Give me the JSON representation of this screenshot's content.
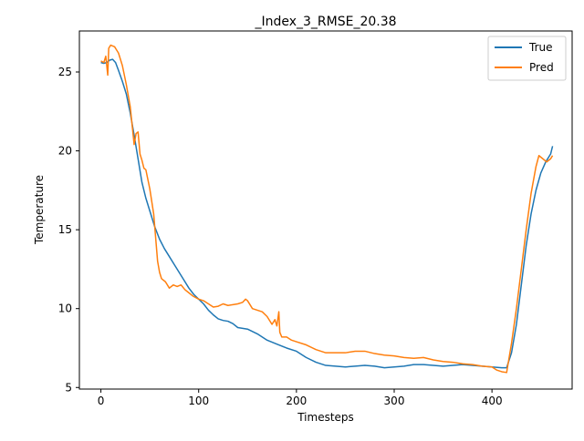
{
  "chart_data": {
    "type": "line",
    "title": "_Index_3_RMSE_20.38",
    "xlabel": "Timesteps",
    "ylabel": "Temperature",
    "xlim": [
      -22,
      482
    ],
    "ylim": [
      4.9,
      27.6
    ],
    "xticks": [
      0,
      100,
      200,
      300,
      400
    ],
    "yticks": [
      5,
      10,
      15,
      20,
      25
    ],
    "grid": false,
    "legend_position": "top-right",
    "series": [
      {
        "name": "True",
        "color": "#1f77b4",
        "points": [
          [
            0,
            25.6
          ],
          [
            3,
            25.55
          ],
          [
            6,
            25.6
          ],
          [
            9,
            25.75
          ],
          [
            12,
            25.8
          ],
          [
            15,
            25.6
          ],
          [
            18,
            25.1
          ],
          [
            22,
            24.4
          ],
          [
            26,
            23.6
          ],
          [
            30,
            22.4
          ],
          [
            34,
            21.0
          ],
          [
            38,
            19.5
          ],
          [
            42,
            18.0
          ],
          [
            46,
            17.0
          ],
          [
            50,
            16.2
          ],
          [
            55,
            15.2
          ],
          [
            60,
            14.4
          ],
          [
            65,
            13.8
          ],
          [
            70,
            13.3
          ],
          [
            75,
            12.8
          ],
          [
            80,
            12.3
          ],
          [
            85,
            11.8
          ],
          [
            90,
            11.3
          ],
          [
            95,
            10.9
          ],
          [
            100,
            10.6
          ],
          [
            105,
            10.3
          ],
          [
            110,
            9.9
          ],
          [
            115,
            9.6
          ],
          [
            120,
            9.35
          ],
          [
            125,
            9.25
          ],
          [
            130,
            9.2
          ],
          [
            135,
            9.05
          ],
          [
            140,
            8.8
          ],
          [
            150,
            8.7
          ],
          [
            160,
            8.4
          ],
          [
            165,
            8.2
          ],
          [
            170,
            8.0
          ],
          [
            180,
            7.75
          ],
          [
            190,
            7.5
          ],
          [
            200,
            7.3
          ],
          [
            210,
            6.9
          ],
          [
            220,
            6.6
          ],
          [
            230,
            6.4
          ],
          [
            240,
            6.35
          ],
          [
            250,
            6.3
          ],
          [
            260,
            6.35
          ],
          [
            270,
            6.4
          ],
          [
            280,
            6.35
          ],
          [
            290,
            6.25
          ],
          [
            300,
            6.3
          ],
          [
            310,
            6.35
          ],
          [
            320,
            6.45
          ],
          [
            330,
            6.45
          ],
          [
            340,
            6.4
          ],
          [
            350,
            6.35
          ],
          [
            360,
            6.4
          ],
          [
            370,
            6.45
          ],
          [
            380,
            6.4
          ],
          [
            390,
            6.35
          ],
          [
            400,
            6.3
          ],
          [
            410,
            6.25
          ],
          [
            415,
            6.25
          ],
          [
            420,
            7.2
          ],
          [
            425,
            9.0
          ],
          [
            430,
            11.5
          ],
          [
            435,
            14.0
          ],
          [
            440,
            16.0
          ],
          [
            445,
            17.5
          ],
          [
            450,
            18.6
          ],
          [
            455,
            19.3
          ],
          [
            460,
            19.8
          ],
          [
            462,
            20.3
          ]
        ]
      },
      {
        "name": "Pred",
        "color": "#ff7f0e",
        "points": [
          [
            0,
            25.7
          ],
          [
            3,
            25.6
          ],
          [
            5,
            26.0
          ],
          [
            7,
            24.8
          ],
          [
            8,
            26.5
          ],
          [
            10,
            26.7
          ],
          [
            14,
            26.6
          ],
          [
            18,
            26.2
          ],
          [
            22,
            25.4
          ],
          [
            26,
            24.2
          ],
          [
            30,
            22.8
          ],
          [
            34,
            20.4
          ],
          [
            36,
            21.1
          ],
          [
            38,
            21.2
          ],
          [
            40,
            19.8
          ],
          [
            42,
            19.4
          ],
          [
            44,
            18.9
          ],
          [
            46,
            18.8
          ],
          [
            48,
            18.2
          ],
          [
            50,
            17.6
          ],
          [
            54,
            16.0
          ],
          [
            56,
            14.5
          ],
          [
            58,
            13.0
          ],
          [
            60,
            12.3
          ],
          [
            62,
            11.9
          ],
          [
            66,
            11.7
          ],
          [
            70,
            11.3
          ],
          [
            74,
            11.5
          ],
          [
            78,
            11.4
          ],
          [
            82,
            11.5
          ],
          [
            86,
            11.2
          ],
          [
            90,
            11.0
          ],
          [
            94,
            10.8
          ],
          [
            100,
            10.6
          ],
          [
            105,
            10.5
          ],
          [
            110,
            10.3
          ],
          [
            115,
            10.1
          ],
          [
            120,
            10.15
          ],
          [
            125,
            10.3
          ],
          [
            130,
            10.2
          ],
          [
            135,
            10.25
          ],
          [
            140,
            10.3
          ],
          [
            145,
            10.4
          ],
          [
            148,
            10.6
          ],
          [
            150,
            10.5
          ],
          [
            155,
            10.0
          ],
          [
            160,
            9.9
          ],
          [
            165,
            9.8
          ],
          [
            170,
            9.5
          ],
          [
            175,
            9.0
          ],
          [
            178,
            9.3
          ],
          [
            180,
            8.9
          ],
          [
            182,
            9.8
          ],
          [
            183,
            8.5
          ],
          [
            185,
            8.2
          ],
          [
            190,
            8.2
          ],
          [
            195,
            8.0
          ],
          [
            200,
            7.9
          ],
          [
            210,
            7.7
          ],
          [
            220,
            7.4
          ],
          [
            230,
            7.2
          ],
          [
            240,
            7.2
          ],
          [
            250,
            7.2
          ],
          [
            260,
            7.3
          ],
          [
            270,
            7.3
          ],
          [
            280,
            7.15
          ],
          [
            290,
            7.05
          ],
          [
            300,
            7.0
          ],
          [
            310,
            6.9
          ],
          [
            320,
            6.85
          ],
          [
            330,
            6.9
          ],
          [
            340,
            6.75
          ],
          [
            350,
            6.65
          ],
          [
            360,
            6.6
          ],
          [
            370,
            6.5
          ],
          [
            380,
            6.45
          ],
          [
            390,
            6.35
          ],
          [
            400,
            6.3
          ],
          [
            405,
            6.1
          ],
          [
            410,
            6.0
          ],
          [
            415,
            5.95
          ],
          [
            420,
            7.8
          ],
          [
            425,
            10.0
          ],
          [
            430,
            12.5
          ],
          [
            435,
            15.0
          ],
          [
            440,
            17.3
          ],
          [
            445,
            19.0
          ],
          [
            448,
            19.7
          ],
          [
            452,
            19.5
          ],
          [
            456,
            19.3
          ],
          [
            460,
            19.5
          ],
          [
            462,
            19.7
          ]
        ]
      }
    ]
  }
}
